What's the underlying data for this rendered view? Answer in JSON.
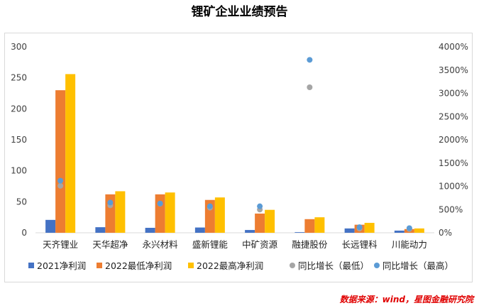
{
  "title": "锂矿企业业绩预告",
  "source_note": "数据来源：wind，星图金融研究院",
  "chart_data": {
    "type": "bar",
    "categories": [
      "天齐锂业",
      "天华超净",
      "永兴材料",
      "盛新锂能",
      "中矿资源",
      "融捷股份",
      "长远锂科",
      "川能动力"
    ],
    "series": [
      {
        "name": "2021净利润",
        "type": "bar",
        "axis": "left",
        "color": "#4472c4",
        "values": [
          20.8,
          9.0,
          8.0,
          8.5,
          4.5,
          1.0,
          7.0,
          3.5
        ]
      },
      {
        "name": "2022最低净利润",
        "type": "bar",
        "axis": "left",
        "color": "#ed7d31",
        "values": [
          230,
          62,
          62,
          53,
          31,
          22,
          13,
          6
        ]
      },
      {
        "name": "2022最高净利润",
        "type": "bar",
        "axis": "left",
        "color": "#ffc000",
        "values": [
          256,
          67,
          65,
          57,
          37,
          25,
          16,
          7
        ]
      },
      {
        "name": "同比增长（最低）",
        "type": "scatter",
        "axis": "right",
        "color": "#a5a5a5",
        "values": [
          1010,
          590,
          625,
          540,
          500,
          3130,
          90,
          80
        ]
      },
      {
        "name": "同比增长（最高）",
        "type": "scatter",
        "axis": "right",
        "color": "#5b9bd5",
        "values": [
          1120,
          650,
          630,
          570,
          570,
          3720,
          120,
          100
        ]
      }
    ],
    "y_left": {
      "min": 0,
      "max": 300,
      "step": 50,
      "ticks": [
        "0",
        "50",
        "100",
        "150",
        "200",
        "250",
        "300"
      ]
    },
    "y_right": {
      "min": 0,
      "max": 4000,
      "step": 500,
      "ticks": [
        "0%",
        "500%",
        "1000%",
        "1500%",
        "2000%",
        "2500%",
        "3000%",
        "3500%",
        "4000%"
      ]
    },
    "legend_position": "bottom",
    "grid": false
  }
}
